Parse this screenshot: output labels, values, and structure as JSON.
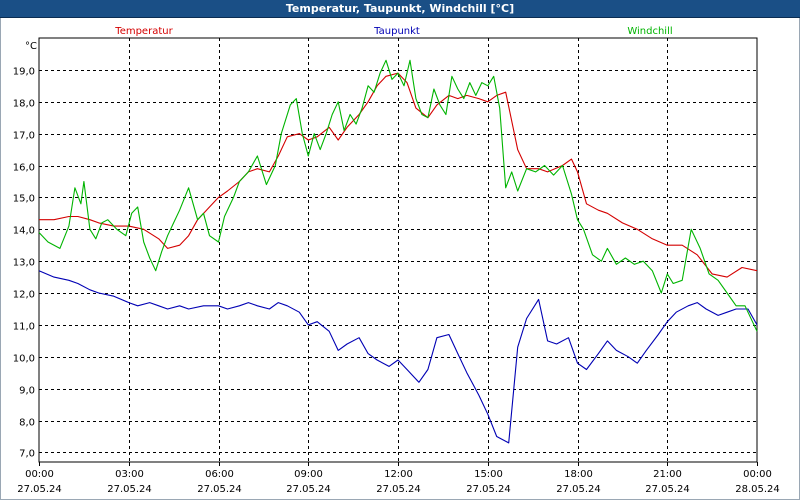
{
  "window": {
    "title": "Temperatur, Taupunkt, Windchill [°C]"
  },
  "chart_data": {
    "type": "line",
    "title": "Temperatur, Taupunkt, Windchill [°C]",
    "ylabel": "°C",
    "ylim": [
      6.7,
      20.0
    ],
    "xlim": [
      0,
      24
    ],
    "grid": true,
    "legend": "top",
    "y_ticks": [
      "7,0",
      "8,0",
      "9,0",
      "10,0",
      "11,0",
      "12,0",
      "13,0",
      "14,0",
      "15,0",
      "16,0",
      "17,0",
      "18,0",
      "19,0"
    ],
    "x_ticks": [
      {
        "time": "00:00",
        "date": "27.05.24"
      },
      {
        "time": "03:00",
        "date": "27.05.24"
      },
      {
        "time": "06:00",
        "date": "27.05.24"
      },
      {
        "time": "09:00",
        "date": "27.05.24"
      },
      {
        "time": "12:00",
        "date": "27.05.24"
      },
      {
        "time": "15:00",
        "date": "27.05.24"
      },
      {
        "time": "18:00",
        "date": "27.05.24"
      },
      {
        "time": "21:00",
        "date": "27.05.24"
      },
      {
        "time": "00:00",
        "date": "28.05.24"
      }
    ],
    "series": [
      {
        "name": "Temperatur",
        "color": "#d40000",
        "x": [
          0,
          0.5,
          1,
          1.3,
          1.7,
          2,
          2.5,
          3,
          3.5,
          4,
          4.3,
          4.7,
          5,
          5.3,
          5.7,
          6,
          6.3,
          6.7,
          7,
          7.3,
          7.7,
          8,
          8.3,
          8.7,
          9,
          9.3,
          9.7,
          10,
          10.3,
          10.7,
          11,
          11.3,
          11.6,
          12,
          12.3,
          12.6,
          13,
          13.3,
          13.7,
          14,
          14.3,
          14.7,
          15,
          15.3,
          15.6,
          16,
          16.3,
          16.7,
          17,
          17.5,
          17.8,
          18,
          18.3,
          18.7,
          19,
          19.5,
          20,
          20.5,
          21,
          21.5,
          22,
          22.5,
          23,
          23.5,
          24
        ],
        "y": [
          14.3,
          14.3,
          14.4,
          14.4,
          14.3,
          14.2,
          14.1,
          14.1,
          14.0,
          13.7,
          13.4,
          13.5,
          13.8,
          14.3,
          14.7,
          15.0,
          15.2,
          15.5,
          15.8,
          15.9,
          15.8,
          16.3,
          16.9,
          17.0,
          16.8,
          16.9,
          17.2,
          16.8,
          17.2,
          17.6,
          18.0,
          18.5,
          18.8,
          18.9,
          18.6,
          17.8,
          17.5,
          17.9,
          18.2,
          18.1,
          18.2,
          18.1,
          18.0,
          18.2,
          18.3,
          16.5,
          15.9,
          15.9,
          15.8,
          16.0,
          16.2,
          15.8,
          14.8,
          14.6,
          14.5,
          14.2,
          14.0,
          13.7,
          13.5,
          13.5,
          13.2,
          12.6,
          12.5,
          12.8,
          12.7
        ]
      },
      {
        "name": "Taupunkt",
        "color": "#0000b4",
        "x": [
          0,
          0.5,
          1,
          1.3,
          1.7,
          2,
          2.5,
          3,
          3.3,
          3.7,
          4,
          4.3,
          4.7,
          5,
          5.5,
          6,
          6.3,
          6.7,
          7,
          7.3,
          7.7,
          8,
          8.3,
          8.7,
          9,
          9.3,
          9.7,
          10,
          10.3,
          10.7,
          11,
          11.3,
          11.7,
          12,
          12.3,
          12.7,
          13,
          13.3,
          13.7,
          14,
          14.3,
          14.7,
          15,
          15.3,
          15.7,
          16,
          16.3,
          16.7,
          17,
          17.3,
          17.7,
          18,
          18.3,
          18.7,
          19,
          19.3,
          19.7,
          20,
          20.3,
          20.7,
          21,
          21.3,
          21.7,
          22,
          22.3,
          22.7,
          23,
          23.3,
          23.7,
          24
        ],
        "y": [
          12.7,
          12.5,
          12.4,
          12.3,
          12.1,
          12.0,
          11.9,
          11.7,
          11.6,
          11.7,
          11.6,
          11.5,
          11.6,
          11.5,
          11.6,
          11.6,
          11.5,
          11.6,
          11.7,
          11.6,
          11.5,
          11.7,
          11.6,
          11.4,
          11.0,
          11.1,
          10.8,
          10.2,
          10.4,
          10.6,
          10.1,
          9.9,
          9.7,
          9.9,
          9.6,
          9.2,
          9.6,
          10.6,
          10.7,
          10.1,
          9.5,
          8.8,
          8.2,
          7.5,
          7.3,
          10.3,
          11.2,
          11.8,
          10.5,
          10.4,
          10.6,
          9.8,
          9.6,
          10.1,
          10.5,
          10.2,
          10.0,
          9.8,
          10.2,
          10.7,
          11.1,
          11.4,
          11.6,
          11.7,
          11.5,
          11.3,
          11.4,
          11.5,
          11.5,
          11.0
        ]
      },
      {
        "name": "Windchill",
        "color": "#00b400",
        "x": [
          0,
          0.3,
          0.7,
          1,
          1.2,
          1.4,
          1.5,
          1.7,
          1.9,
          2.1,
          2.3,
          2.6,
          2.9,
          3.1,
          3.3,
          3.5,
          3.7,
          3.9,
          4.1,
          4.3,
          4.5,
          4.7,
          5,
          5.3,
          5.5,
          5.7,
          6,
          6.2,
          6.5,
          6.7,
          7,
          7.3,
          7.6,
          7.9,
          8.1,
          8.4,
          8.6,
          8.8,
          9.0,
          9.2,
          9.4,
          9.6,
          9.8,
          10,
          10.2,
          10.4,
          10.6,
          10.8,
          11,
          11.2,
          11.4,
          11.6,
          11.8,
          12,
          12.2,
          12.4,
          12.6,
          12.8,
          13,
          13.2,
          13.4,
          13.6,
          13.8,
          14,
          14.2,
          14.4,
          14.6,
          14.8,
          15,
          15.2,
          15.4,
          15.6,
          15.8,
          16,
          16.3,
          16.6,
          16.9,
          17.2,
          17.5,
          17.8,
          18,
          18.2,
          18.5,
          18.8,
          19,
          19.3,
          19.6,
          19.9,
          20.2,
          20.5,
          20.8,
          21,
          21.2,
          21.5,
          21.8,
          22.1,
          22.4,
          22.7,
          23,
          23.3,
          23.6,
          24
        ],
        "y": [
          13.9,
          13.6,
          13.4,
          14.1,
          15.3,
          14.8,
          15.5,
          14.0,
          13.7,
          14.2,
          14.3,
          14.0,
          13.8,
          14.5,
          14.7,
          13.6,
          13.1,
          12.7,
          13.3,
          13.8,
          14.2,
          14.6,
          15.3,
          14.3,
          14.5,
          13.8,
          13.6,
          14.4,
          15.0,
          15.5,
          15.8,
          16.3,
          15.4,
          16.0,
          17.0,
          17.9,
          18.1,
          17.0,
          16.3,
          17.0,
          16.5,
          17.0,
          17.6,
          18.0,
          17.1,
          17.6,
          17.3,
          17.8,
          18.5,
          18.3,
          18.9,
          19.3,
          18.7,
          18.9,
          18.5,
          19.3,
          18.1,
          17.6,
          17.5,
          18.4,
          17.9,
          17.6,
          18.8,
          18.4,
          18.1,
          18.6,
          18.2,
          18.6,
          18.5,
          18.8,
          17.8,
          15.3,
          15.8,
          15.2,
          15.9,
          15.8,
          16.0,
          15.7,
          16.0,
          15.1,
          14.3,
          14.0,
          13.2,
          13.0,
          13.4,
          12.9,
          13.1,
          12.9,
          13.0,
          12.7,
          12.0,
          12.6,
          12.3,
          12.4,
          14.0,
          13.4,
          12.6,
          12.4,
          12.0,
          11.6,
          11.6,
          10.8
        ]
      }
    ]
  }
}
